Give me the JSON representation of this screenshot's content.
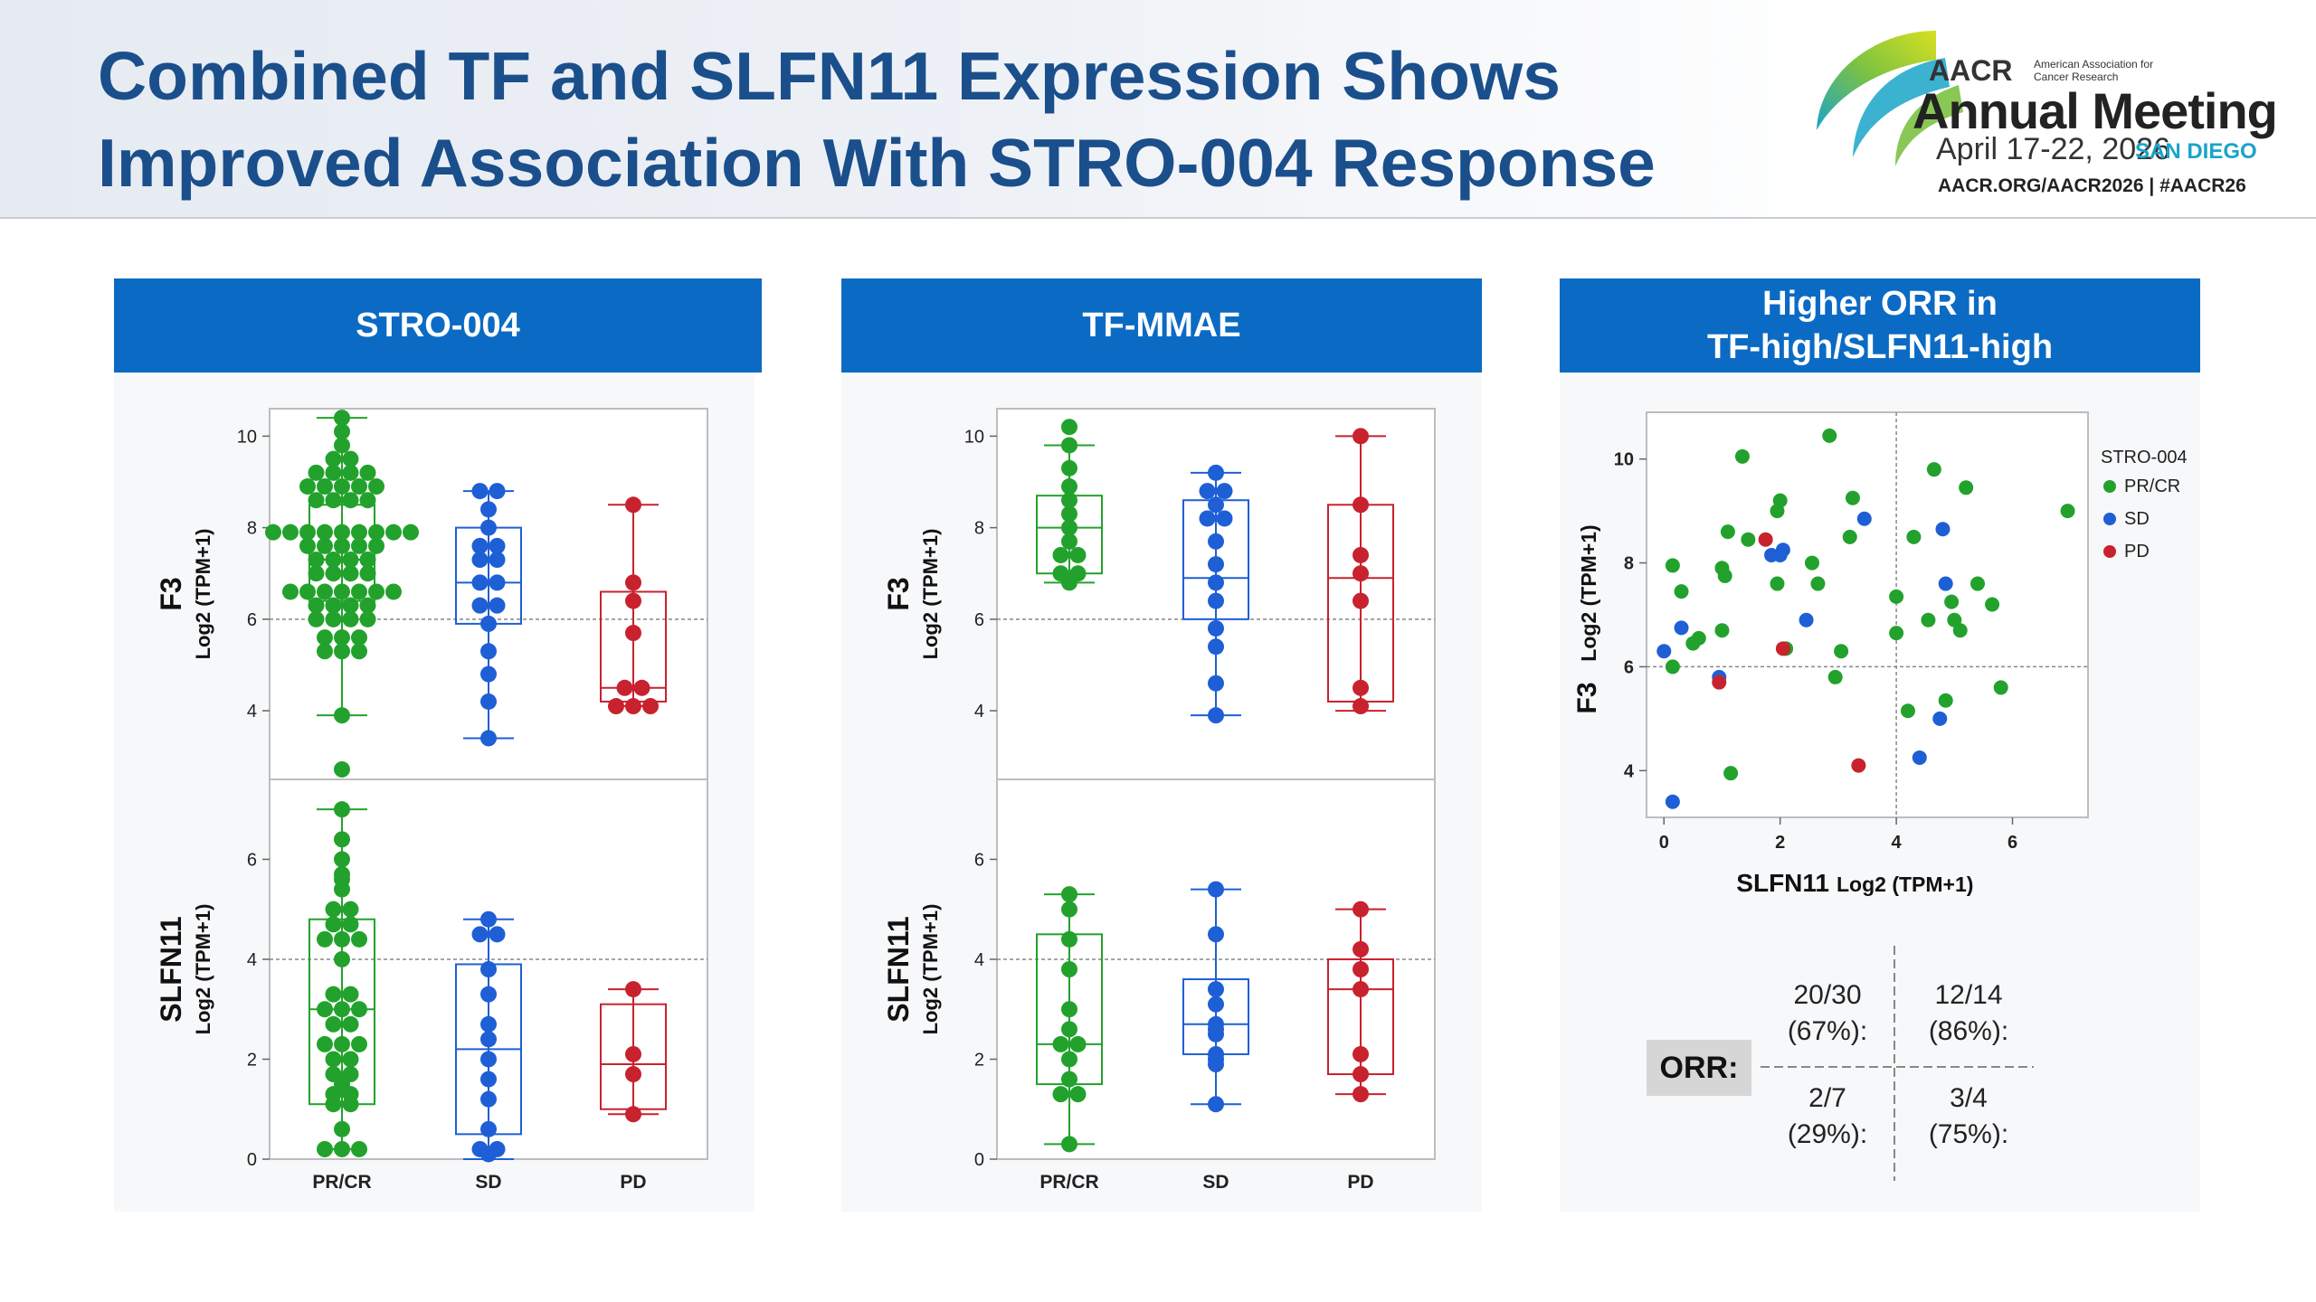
{
  "header": {
    "title_line1": "Combined TF and SLFN11 Expression Shows",
    "title_line2": "Improved Association With STRO-004 Response"
  },
  "logo": {
    "org_short": "AACR",
    "org_full": "American Association for Cancer Research",
    "event": "Annual Meeting",
    "dates": "April 17-22, 2026",
    "city": "SAN DIEGO",
    "links": "AACR.ORG/AACR2026  |  #AACR26"
  },
  "colors": {
    "header_blue": "#1a4f8c",
    "panel_blue": "#0b6bc4",
    "pr_cr": "#22a22c",
    "sd": "#1e5fd6",
    "pd": "#c8222e"
  },
  "panels": {
    "p1": {
      "title": "STRO-004"
    },
    "p2": {
      "title": "TF-MMAE"
    },
    "p3": {
      "title_line1": "Higher ORR in",
      "title_line2": "TF-high/SLFN11-high"
    }
  },
  "chart_data": [
    {
      "id": "stro004_f3",
      "type": "box-dot",
      "panel": "STRO-004",
      "ylabel": "F3",
      "ylabel_sub": "Log2 (TPM+1)",
      "ylim": [
        2.5,
        10.6
      ],
      "yticks": [
        4,
        6,
        8,
        10
      ],
      "categories": [
        "PR/CR",
        "SD",
        "PD"
      ],
      "reference_line": 6,
      "groups": [
        {
          "name": "PR/CR",
          "color": "#22a22c",
          "whisker_low": 3.9,
          "q1": 6.4,
          "median": 7.3,
          "q3": 8.5,
          "whisker_high": 10.4,
          "points": [
            10.4,
            10.1,
            9.8,
            9.5,
            9.5,
            9.2,
            9.2,
            9.2,
            9.2,
            8.9,
            8.9,
            8.9,
            8.9,
            8.9,
            8.6,
            8.6,
            8.6,
            8.6,
            7.9,
            7.9,
            7.9,
            7.9,
            7.9,
            7.9,
            7.9,
            7.9,
            7.9,
            7.6,
            7.6,
            7.6,
            7.6,
            7.6,
            7.3,
            7.3,
            7.3,
            7.3,
            7.0,
            7.0,
            7.0,
            7.0,
            6.6,
            6.6,
            6.6,
            6.6,
            6.6,
            6.6,
            6.6,
            6.3,
            6.3,
            6.3,
            6.3,
            6.0,
            6.0,
            6.0,
            6.0,
            5.6,
            5.6,
            5.6,
            5.3,
            5.3,
            5.3,
            3.9
          ]
        },
        {
          "name": "SD",
          "color": "#1e5fd6",
          "whisker_low": 3.4,
          "q1": 5.9,
          "median": 6.8,
          "q3": 8.0,
          "whisker_high": 8.8,
          "points": [
            8.8,
            8.8,
            8.4,
            8.0,
            7.6,
            7.6,
            7.3,
            7.3,
            6.8,
            6.8,
            6.3,
            6.3,
            5.9,
            5.3,
            4.8,
            4.2,
            3.4
          ]
        },
        {
          "name": "PD",
          "color": "#c8222e",
          "whisker_low": 4.1,
          "q1": 4.2,
          "median": 4.5,
          "q3": 6.6,
          "whisker_high": 8.5,
          "points": [
            8.5,
            6.8,
            6.4,
            5.7,
            4.5,
            4.5,
            4.1,
            4.1,
            4.1
          ]
        }
      ]
    },
    {
      "id": "stro004_slfn11",
      "type": "box-dot",
      "panel": "STRO-004",
      "ylabel": "SLFN11",
      "ylabel_sub": "Log2 (TPM+1)",
      "ylim": [
        0,
        7.6
      ],
      "yticks": [
        0,
        2,
        4,
        6
      ],
      "categories": [
        "PR/CR",
        "SD",
        "PD"
      ],
      "reference_line": 4,
      "groups": [
        {
          "name": "PR/CR",
          "color": "#22a22c",
          "whisker_low": 0.2,
          "q1": 1.1,
          "median": 3.0,
          "q3": 4.8,
          "whisker_high": 7.0,
          "points": [
            7.8,
            7.0,
            6.4,
            6.0,
            5.7,
            5.6,
            5.4,
            5.0,
            5.0,
            4.7,
            4.7,
            4.4,
            4.4,
            4.4,
            4.0,
            3.3,
            3.3,
            3.0,
            3.0,
            3.0,
            2.7,
            2.7,
            2.3,
            2.3,
            2.3,
            2.0,
            2.0,
            1.7,
            1.7,
            1.5,
            1.3,
            1.3,
            1.1,
            1.1,
            0.6,
            0.2,
            0.2,
            0.2
          ]
        },
        {
          "name": "SD",
          "color": "#1e5fd6",
          "whisker_low": 0.0,
          "q1": 0.5,
          "median": 2.2,
          "q3": 3.9,
          "whisker_high": 4.8,
          "points": [
            4.8,
            4.5,
            4.5,
            3.8,
            3.3,
            2.7,
            2.4,
            2.0,
            1.6,
            1.2,
            0.6,
            0.2,
            0.2,
            0.1
          ]
        },
        {
          "name": "PD",
          "color": "#c8222e",
          "whisker_low": 0.9,
          "q1": 1.0,
          "median": 1.9,
          "q3": 3.1,
          "whisker_high": 3.4,
          "points": [
            3.4,
            2.1,
            1.7,
            0.9
          ]
        }
      ]
    },
    {
      "id": "tfmmae_f3",
      "type": "box-dot",
      "panel": "TF-MMAE",
      "ylabel": "F3",
      "ylabel_sub": "Log2 (TPM+1)",
      "ylim": [
        2.5,
        10.6
      ],
      "yticks": [
        4,
        6,
        8,
        10
      ],
      "categories": [
        "PR/CR",
        "SD",
        "PD"
      ],
      "reference_line": 6,
      "groups": [
        {
          "name": "PR/CR",
          "color": "#22a22c",
          "whisker_low": 6.8,
          "q1": 7.0,
          "median": 8.0,
          "q3": 8.7,
          "whisker_high": 9.8,
          "points": [
            10.2,
            9.8,
            9.3,
            8.9,
            8.6,
            8.3,
            8.0,
            7.7,
            7.4,
            7.4,
            7.0,
            7.0,
            6.8
          ]
        },
        {
          "name": "SD",
          "color": "#1e5fd6",
          "whisker_low": 3.9,
          "q1": 6.0,
          "median": 6.9,
          "q3": 8.6,
          "whisker_high": 9.2,
          "points": [
            9.2,
            8.8,
            8.8,
            8.5,
            8.2,
            8.2,
            7.7,
            7.2,
            6.8,
            6.4,
            5.8,
            5.4,
            4.6,
            3.9
          ]
        },
        {
          "name": "PD",
          "color": "#c8222e",
          "whisker_low": 4.0,
          "q1": 4.2,
          "median": 6.9,
          "q3": 8.5,
          "whisker_high": 10.0,
          "points": [
            10.0,
            8.5,
            7.4,
            7.0,
            6.4,
            4.5,
            4.1
          ]
        }
      ]
    },
    {
      "id": "tfmmae_slfn11",
      "type": "box-dot",
      "panel": "TF-MMAE",
      "ylabel": "SLFN11",
      "ylabel_sub": "Log2 (TPM+1)",
      "ylim": [
        0,
        7.6
      ],
      "yticks": [
        0,
        2,
        4,
        6
      ],
      "categories": [
        "PR/CR",
        "SD",
        "PD"
      ],
      "reference_line": 4,
      "groups": [
        {
          "name": "PR/CR",
          "color": "#22a22c",
          "whisker_low": 0.3,
          "q1": 1.5,
          "median": 2.3,
          "q3": 4.5,
          "whisker_high": 5.3,
          "points": [
            5.3,
            5.0,
            4.4,
            3.8,
            3.0,
            2.6,
            2.3,
            2.3,
            2.0,
            1.6,
            1.3,
            1.3,
            0.3
          ]
        },
        {
          "name": "SD",
          "color": "#1e5fd6",
          "whisker_low": 1.1,
          "q1": 2.1,
          "median": 2.7,
          "q3": 3.6,
          "whisker_high": 5.4,
          "points": [
            5.4,
            4.5,
            3.4,
            3.1,
            2.7,
            2.6,
            2.5,
            2.1,
            2.0,
            1.9,
            1.1
          ]
        },
        {
          "name": "PD",
          "color": "#c8222e",
          "whisker_low": 1.3,
          "q1": 1.7,
          "median": 3.4,
          "q3": 4.0,
          "whisker_high": 5.0,
          "points": [
            5.0,
            4.2,
            3.8,
            3.4,
            2.1,
            1.7,
            1.3
          ]
        }
      ]
    },
    {
      "id": "orr_scatter",
      "type": "scatter",
      "panel": "Higher ORR in TF-high/SLFN11-high",
      "xlabel": "SLFN11",
      "xlabel_sub": "Log2 (TPM+1)",
      "ylabel": "F3",
      "ylabel_sub": "Log2 (TPM+1)",
      "xlim": [
        -0.3,
        7.3
      ],
      "ylim": [
        3.1,
        10.9
      ],
      "xticks": [
        0,
        2,
        4,
        6
      ],
      "yticks": [
        4,
        6,
        8,
        10
      ],
      "x_ref": 4,
      "y_ref": 6,
      "legend_title": "STRO-004",
      "legend_position": "right",
      "series": [
        {
          "name": "PR/CR",
          "color": "#22a22c",
          "points": [
            [
              0.15,
              7.95
            ],
            [
              0.15,
              6.0
            ],
            [
              0.3,
              7.45
            ],
            [
              0.5,
              6.45
            ],
            [
              0.6,
              6.55
            ],
            [
              1.0,
              7.9
            ],
            [
              1.0,
              6.7
            ],
            [
              1.05,
              7.75
            ],
            [
              1.1,
              8.6
            ],
            [
              1.15,
              3.95
            ],
            [
              1.35,
              10.05
            ],
            [
              1.45,
              8.45
            ],
            [
              1.95,
              7.6
            ],
            [
              1.95,
              9.0
            ],
            [
              2.0,
              9.2
            ],
            [
              2.1,
              6.35
            ],
            [
              2.55,
              8.0
            ],
            [
              2.65,
              7.6
            ],
            [
              2.85,
              10.45
            ],
            [
              2.95,
              5.8
            ],
            [
              3.05,
              6.3
            ],
            [
              3.2,
              8.5
            ],
            [
              3.25,
              9.25
            ],
            [
              4.0,
              6.65
            ],
            [
              4.0,
              7.35
            ],
            [
              4.2,
              5.15
            ],
            [
              4.3,
              8.5
            ],
            [
              4.55,
              6.9
            ],
            [
              4.65,
              9.8
            ],
            [
              4.85,
              5.35
            ],
            [
              4.95,
              7.25
            ],
            [
              5.0,
              6.9
            ],
            [
              5.1,
              6.7
            ],
            [
              5.2,
              9.45
            ],
            [
              5.4,
              7.6
            ],
            [
              5.65,
              7.2
            ],
            [
              5.8,
              5.6
            ],
            [
              6.95,
              9.0
            ]
          ]
        },
        {
          "name": "SD",
          "color": "#1e5fd6",
          "points": [
            [
              0.0,
              6.3
            ],
            [
              0.15,
              3.4
            ],
            [
              0.3,
              6.75
            ],
            [
              0.95,
              5.8
            ],
            [
              1.85,
              8.15
            ],
            [
              2.05,
              8.25
            ],
            [
              2.45,
              6.9
            ],
            [
              3.45,
              8.85
            ],
            [
              4.4,
              4.25
            ],
            [
              4.75,
              5.0
            ],
            [
              4.8,
              8.65
            ],
            [
              4.85,
              7.6
            ],
            [
              2.0,
              8.15
            ]
          ]
        },
        {
          "name": "PD",
          "color": "#c8222e",
          "points": [
            [
              0.95,
              5.7
            ],
            [
              1.75,
              8.45
            ],
            [
              2.05,
              6.35
            ],
            [
              3.35,
              4.1
            ]
          ]
        }
      ]
    }
  ],
  "orr_table": {
    "label": "ORR:",
    "top_left": {
      "ratio": "20/30",
      "pct": "(67%):"
    },
    "top_right": {
      "ratio": "12/14",
      "pct": "(86%):"
    },
    "bottom_left": {
      "ratio": "2/7",
      "pct": "(29%):"
    },
    "bottom_right": {
      "ratio": "3/4",
      "pct": "(75%):"
    }
  }
}
